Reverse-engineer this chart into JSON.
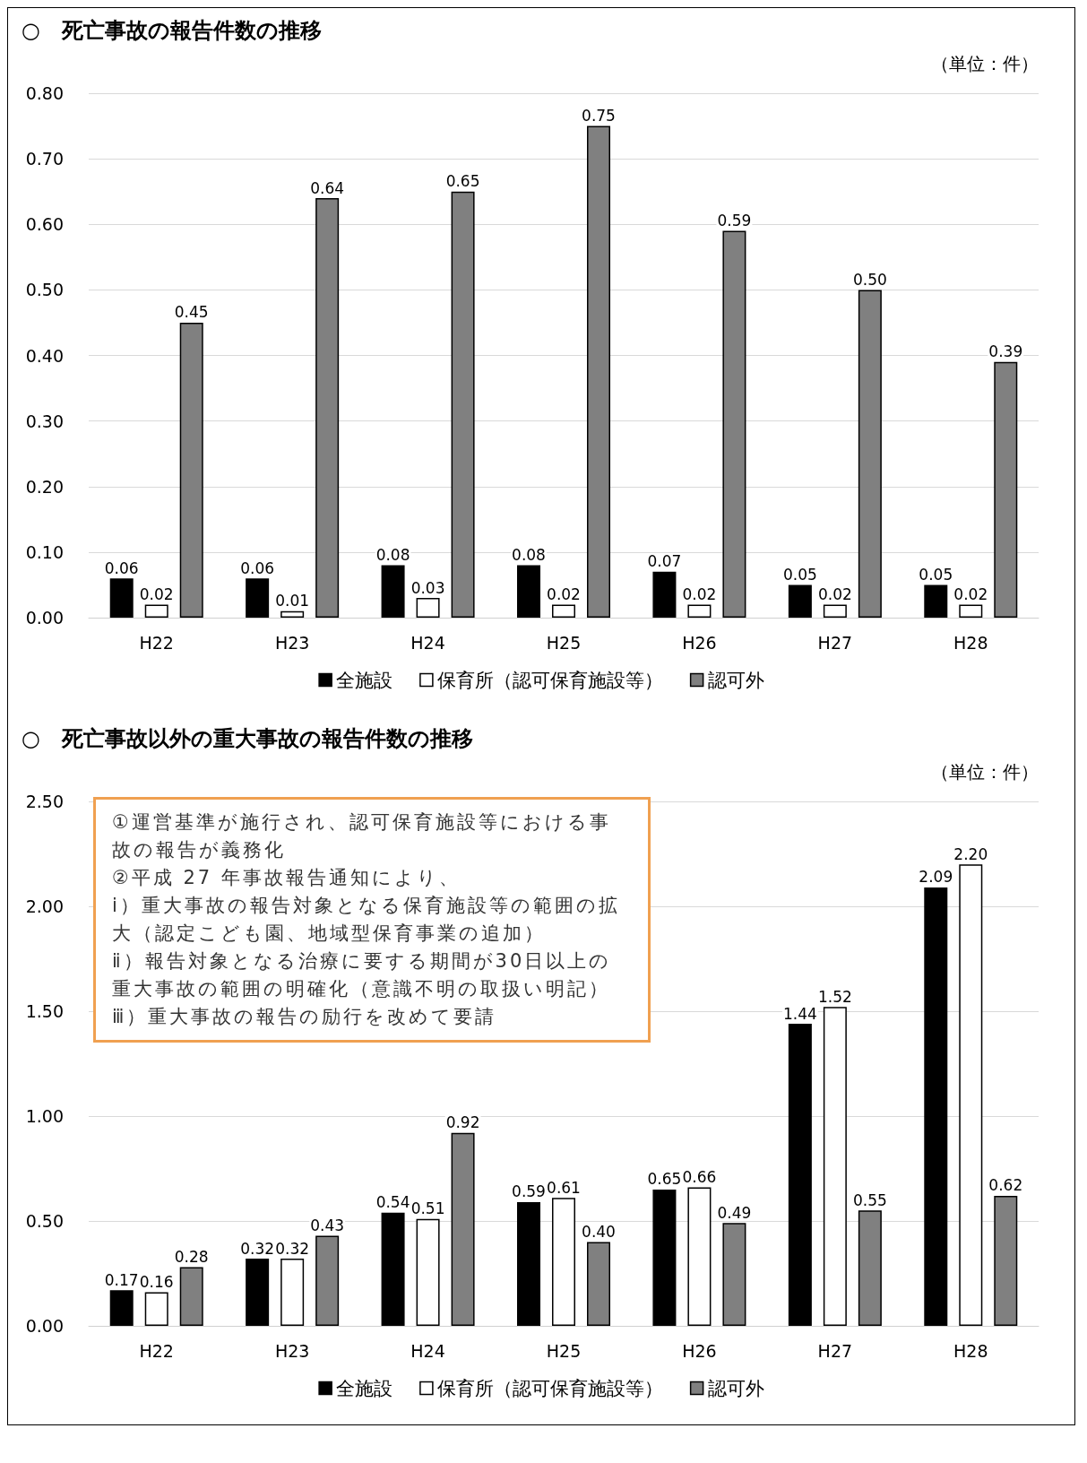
{
  "chart_data": [
    {
      "type": "bar",
      "title": "○　死亡事故の報告件数の推移",
      "annotations": [
        "（単位：件）"
      ],
      "categories": [
        "H22",
        "H23",
        "H24",
        "H25",
        "H26",
        "H27",
        "H28"
      ],
      "series": [
        {
          "name": "全施設",
          "color": "#000000",
          "values": [
            0.06,
            0.06,
            0.08,
            0.08,
            0.07,
            0.05,
            0.05
          ],
          "value_labels": [
            "0.06",
            "0.06",
            "0.08",
            "0.08",
            "0.07",
            "0.05",
            "0.05"
          ]
        },
        {
          "name": "保育所（認可保育施設等）",
          "color": "#ffffff",
          "values": [
            0.02,
            0.01,
            0.03,
            0.02,
            0.02,
            0.02,
            0.02
          ],
          "value_labels": [
            "0.02",
            "0.01",
            "0.03",
            "0.02",
            "0.02",
            "0.02",
            "0.02"
          ]
        },
        {
          "name": "認可外",
          "color": "#808080",
          "values": [
            0.45,
            0.64,
            0.65,
            0.75,
            0.59,
            0.5,
            0.39
          ],
          "value_labels": [
            "0.45",
            "0.64",
            "0.65",
            "0.75",
            "0.59",
            "0.50",
            "0.39"
          ]
        }
      ],
      "ylim": [
        0,
        0.8
      ],
      "yticks": [
        {
          "value": 0,
          "label": "0.00"
        },
        {
          "value": 0.1,
          "label": "0.10"
        },
        {
          "value": 0.2,
          "label": "0.20"
        },
        {
          "value": 0.3,
          "label": "0.30"
        },
        {
          "value": 0.4,
          "label": "0.40"
        },
        {
          "value": 0.5,
          "label": "0.50"
        },
        {
          "value": 0.6,
          "label": "0.60"
        },
        {
          "value": 0.7,
          "label": "0.70"
        },
        {
          "value": 0.8,
          "label": "0.80"
        }
      ],
      "grid": "y",
      "legend": "bottom"
    },
    {
      "type": "bar",
      "title": "○　死亡事故以外の重大事故の報告件数の推移",
      "annotations": [
        "（単位：件）",
        "①運営基準が施行され、認可保育施設等における事故の報告が義務化",
        "②平成 27 年事故報告通知により、",
        "ⅰ）重大事故の報告対象となる保育施設等の範囲の拡大（認定こども園、地域型保育事業の追加）",
        "ⅱ）報告対象となる治療に要する期間が30日以上の重大事故の範囲の明確化（意識不明の取扱い明記）",
        "ⅲ）重大事故の報告の励行を改めて要請"
      ],
      "categories": [
        "H22",
        "H23",
        "H24",
        "H25",
        "H26",
        "H27",
        "H28"
      ],
      "series": [
        {
          "name": "全施設",
          "color": "#000000",
          "values": [
            0.17,
            0.32,
            0.54,
            0.59,
            0.65,
            1.44,
            2.09
          ],
          "value_labels": [
            "0.17",
            "0.32",
            "0.54",
            "0.59",
            "0.65",
            "1.44",
            "2.09"
          ]
        },
        {
          "name": "保育所（認可保育施設等）",
          "color": "#ffffff",
          "values": [
            0.16,
            0.32,
            0.51,
            0.61,
            0.66,
            1.52,
            2.2
          ],
          "value_labels": [
            "0.16",
            "0.32",
            "0.51",
            "0.61",
            "0.66",
            "1.52",
            "2.20"
          ]
        },
        {
          "name": "認可外",
          "color": "#808080",
          "values": [
            0.28,
            0.43,
            0.92,
            0.4,
            0.49,
            0.55,
            0.62
          ],
          "value_labels": [
            "0.28",
            "0.43",
            "0.92",
            "0.40",
            "0.49",
            "0.55",
            "0.62"
          ]
        }
      ],
      "ylim": [
        0,
        2.5
      ],
      "yticks": [
        {
          "value": 0,
          "label": "0.00"
        },
        {
          "value": 0.5,
          "label": "0.50"
        },
        {
          "value": 1,
          "label": "1.00"
        },
        {
          "value": 1.5,
          "label": "1.50"
        },
        {
          "value": 2,
          "label": "2.00"
        },
        {
          "value": 2.5,
          "label": "2.50"
        }
      ],
      "grid": "y",
      "legend": "bottom"
    }
  ]
}
